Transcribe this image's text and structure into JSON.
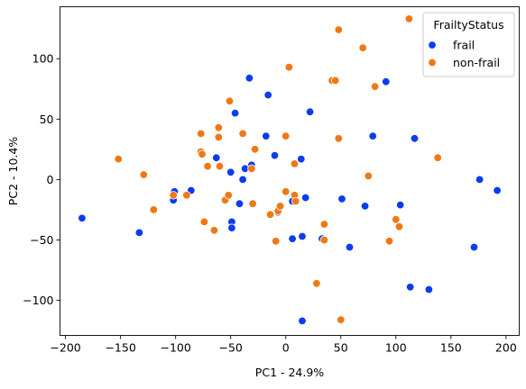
{
  "chart_data": {
    "type": "scatter",
    "xlabel": "PC1 - 24.9%",
    "ylabel": "PC2 - 10.4%",
    "xlim": [
      -205,
      212
    ],
    "ylim": [
      -129,
      143
    ],
    "xticks": [
      -200,
      -150,
      -100,
      -50,
      0,
      50,
      100,
      150,
      200
    ],
    "yticks": [
      -100,
      -50,
      0,
      50,
      100
    ],
    "grid": false,
    "legend": {
      "title": "FrailtyStatus",
      "placement": "top-right"
    },
    "series": [
      {
        "name": "frail",
        "color": "#0a3cf0",
        "points": [
          [
            -185,
            -32
          ],
          [
            -133,
            -44
          ],
          [
            -102,
            -17
          ],
          [
            -101,
            -10
          ],
          [
            -86,
            -9
          ],
          [
            -63,
            18
          ],
          [
            -50,
            6
          ],
          [
            -49,
            -35
          ],
          [
            -49,
            -40
          ],
          [
            -46,
            55
          ],
          [
            -42,
            -20
          ],
          [
            -39,
            0
          ],
          [
            -37,
            9
          ],
          [
            -33,
            84
          ],
          [
            -31,
            12
          ],
          [
            -18,
            36
          ],
          [
            -16,
            70
          ],
          [
            -10,
            20
          ],
          [
            -7,
            -27
          ],
          [
            6,
            -18
          ],
          [
            6,
            -49
          ],
          [
            14,
            17
          ],
          [
            15,
            -47
          ],
          [
            18,
            -15
          ],
          [
            22,
            56
          ],
          [
            15,
            -117
          ],
          [
            33,
            -49
          ],
          [
            51,
            -16
          ],
          [
            58,
            -56
          ],
          [
            72,
            -22
          ],
          [
            79,
            36
          ],
          [
            91,
            81
          ],
          [
            104,
            -21
          ],
          [
            113,
            -89
          ],
          [
            117,
            34
          ],
          [
            130,
            -91
          ],
          [
            171,
            -56
          ],
          [
            176,
            0
          ],
          [
            192,
            -9
          ]
        ]
      },
      {
        "name": "non-frail",
        "color": "#f07814",
        "points": [
          [
            -152,
            17
          ],
          [
            -129,
            4
          ],
          [
            -120,
            -25
          ],
          [
            -102,
            -13
          ],
          [
            -90,
            -13
          ],
          [
            -77,
            38
          ],
          [
            -77,
            23
          ],
          [
            -76,
            21
          ],
          [
            -74,
            -35
          ],
          [
            -71,
            11
          ],
          [
            -65,
            -42
          ],
          [
            -61,
            43
          ],
          [
            -61,
            35
          ],
          [
            -60,
            11
          ],
          [
            -55,
            -17
          ],
          [
            -52,
            -13
          ],
          [
            -51,
            65
          ],
          [
            -39,
            38
          ],
          [
            -31,
            9
          ],
          [
            -30,
            -20
          ],
          [
            -28,
            25
          ],
          [
            -14,
            -29
          ],
          [
            -9,
            -51
          ],
          [
            -7,
            -26
          ],
          [
            -5,
            -22
          ],
          [
            0,
            36
          ],
          [
            0,
            -10
          ],
          [
            3,
            93
          ],
          [
            8,
            -13
          ],
          [
            9,
            -18
          ],
          [
            8,
            13
          ],
          [
            28,
            -86
          ],
          [
            35,
            -37
          ],
          [
            35,
            -50
          ],
          [
            42,
            82
          ],
          [
            45,
            82
          ],
          [
            48,
            124
          ],
          [
            48,
            34
          ],
          [
            50,
            -116
          ],
          [
            70,
            109
          ],
          [
            75,
            3
          ],
          [
            81,
            77
          ],
          [
            94,
            -51
          ],
          [
            100,
            -33
          ],
          [
            103,
            -39
          ],
          [
            112,
            133
          ],
          [
            138,
            18
          ]
        ]
      }
    ]
  }
}
